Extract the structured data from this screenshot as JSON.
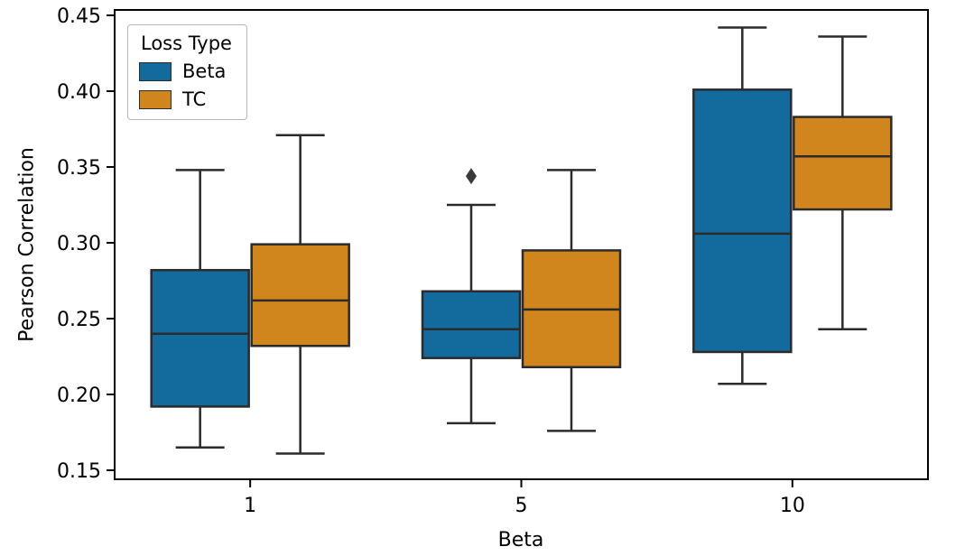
{
  "chart_data": {
    "type": "box",
    "title": "",
    "xlabel": "Beta",
    "ylabel": "Pearson Correlation",
    "categories": [
      "1",
      "5",
      "10"
    ],
    "ylim": [
      0.15,
      0.45
    ],
    "yticks": [
      0.15,
      0.2,
      0.25,
      0.3,
      0.35,
      0.4,
      0.45
    ],
    "ytick_labels": [
      "0.15",
      "0.20",
      "0.25",
      "0.30",
      "0.35",
      "0.40",
      "0.45"
    ],
    "grid": false,
    "legend": {
      "title": "Loss Type",
      "position": "upper left"
    },
    "series": [
      {
        "name": "Beta",
        "color": "#136a9c"
      },
      {
        "name": "TC",
        "color": "#d0861c"
      }
    ],
    "edge_color": "#2b2b2b",
    "outlier_color": "#3a3a3a",
    "groups": [
      {
        "category": "1",
        "boxes": [
          {
            "series": "Beta",
            "whislo": 0.165,
            "q1": 0.192,
            "med": 0.24,
            "q3": 0.282,
            "whishi": 0.348,
            "outliers": []
          },
          {
            "series": "TC",
            "whislo": 0.161,
            "q1": 0.232,
            "med": 0.262,
            "q3": 0.299,
            "whishi": 0.371,
            "outliers": []
          }
        ]
      },
      {
        "category": "5",
        "boxes": [
          {
            "series": "Beta",
            "whislo": 0.181,
            "q1": 0.224,
            "med": 0.243,
            "q3": 0.268,
            "whishi": 0.325,
            "outliers": [
              0.344
            ]
          },
          {
            "series": "TC",
            "whislo": 0.176,
            "q1": 0.218,
            "med": 0.256,
            "q3": 0.295,
            "whishi": 0.348,
            "outliers": []
          }
        ]
      },
      {
        "category": "10",
        "boxes": [
          {
            "series": "Beta",
            "whislo": 0.207,
            "q1": 0.228,
            "med": 0.306,
            "q3": 0.401,
            "whishi": 0.442,
            "outliers": []
          },
          {
            "series": "TC",
            "whislo": 0.243,
            "q1": 0.322,
            "med": 0.357,
            "q3": 0.383,
            "whishi": 0.436,
            "outliers": []
          }
        ]
      }
    ]
  }
}
